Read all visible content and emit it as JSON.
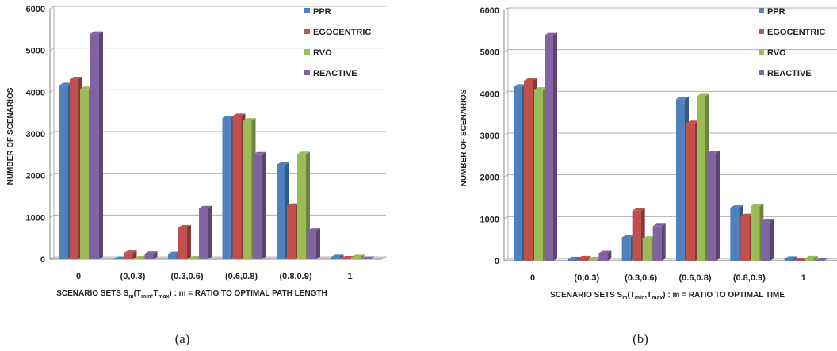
{
  "chart_data": [
    {
      "type": "bar",
      "panel_label": "(a)",
      "categories": [
        "0",
        "(0,0.3)",
        "(0.3,0.6)",
        "(0.6,0.8)",
        "(0.8,0.9)",
        "1"
      ],
      "series": [
        {
          "name": "PPR",
          "color": "#4f81bd",
          "values": [
            4170,
            10,
            120,
            3380,
            2260,
            50
          ]
        },
        {
          "name": "EGOCENTRIC",
          "color": "#c0504d",
          "values": [
            4310,
            150,
            760,
            3430,
            1280,
            20
          ]
        },
        {
          "name": "RVO",
          "color": "#9bbb59",
          "values": [
            4080,
            20,
            20,
            3320,
            2520,
            50
          ]
        },
        {
          "name": "REACTIVE",
          "color": "#8064a2",
          "values": [
            5400,
            130,
            1220,
            2510,
            680,
            10
          ]
        }
      ],
      "xlabel_prefix": "SCENARIO SETS S",
      "xlabel_sub_m": "m",
      "xlabel_paren_open": "(T",
      "xlabel_sub_min": "min",
      "xlabel_comma": ",T",
      "xlabel_sub_max": "max",
      "xlabel_suffix": ") : m = RATIO TO OPTIMAL PATH LENGTH",
      "ylabel": "NUMBER OF SCENARIOS",
      "ylim": [
        0,
        6000
      ],
      "yticks": [
        "0",
        "1000",
        "2000",
        "3000",
        "4000",
        "5000",
        "6000"
      ],
      "grid": true,
      "legend_position": "top-right"
    },
    {
      "type": "bar",
      "panel_label": "(b)",
      "categories": [
        "0",
        "(0,0.3)",
        "(0.3,0.6)",
        "(0.6,0.8)",
        "(0.8,0.9)",
        "1"
      ],
      "series": [
        {
          "name": "PPR",
          "color": "#4f81bd",
          "values": [
            4170,
            40,
            560,
            3870,
            1270,
            50
          ]
        },
        {
          "name": "EGOCENTRIC",
          "color": "#c0504d",
          "values": [
            4310,
            60,
            1200,
            3300,
            1070,
            20
          ]
        },
        {
          "name": "RVO",
          "color": "#9bbb59",
          "values": [
            4100,
            40,
            530,
            3940,
            1310,
            60
          ]
        },
        {
          "name": "REACTIVE",
          "color": "#8064a2",
          "values": [
            5400,
            180,
            830,
            2580,
            940,
            10
          ]
        }
      ],
      "xlabel_prefix": "SCENARIO SETS S",
      "xlabel_sub_m": "m",
      "xlabel_paren_open": "(T",
      "xlabel_sub_min": "min",
      "xlabel_comma": ",T",
      "xlabel_sub_max": "max",
      "xlabel_suffix": ") : m = RATIO TO OPTIMAL TIME",
      "ylabel": "NUMBER OF SCENARIOS",
      "ylim": [
        0,
        6000
      ],
      "yticks": [
        "0",
        "1000",
        "2000",
        "3000",
        "4000",
        "5000",
        "6000"
      ],
      "grid": true,
      "legend_position": "top-right"
    }
  ]
}
